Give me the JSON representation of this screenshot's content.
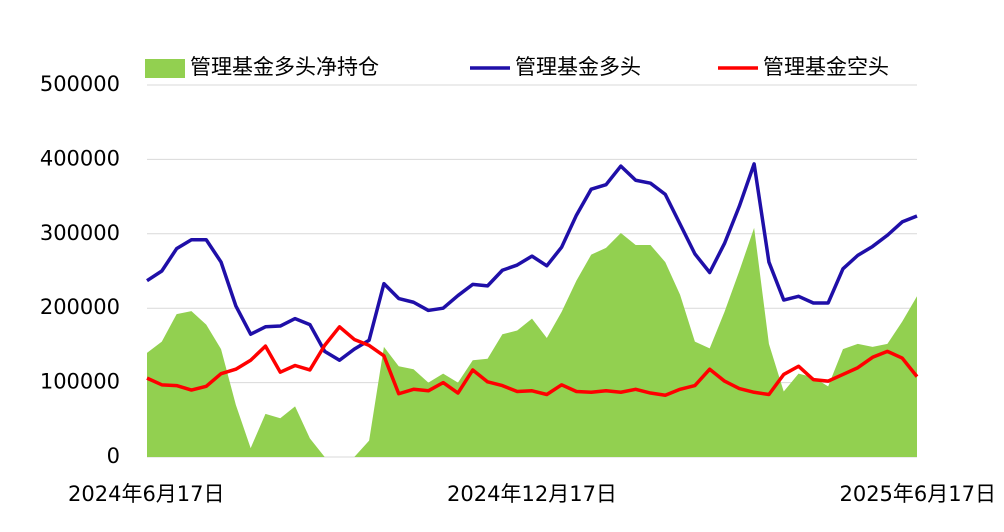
{
  "chart_data": {
    "type": "area-line",
    "categories": [
      "2024年6月17日",
      null,
      null,
      null,
      null,
      null,
      null,
      null,
      null,
      null,
      null,
      null,
      null,
      null,
      null,
      null,
      null,
      null,
      null,
      null,
      null,
      null,
      null,
      null,
      null,
      null,
      "2024年12月17日",
      null,
      null,
      null,
      null,
      null,
      null,
      null,
      null,
      null,
      null,
      null,
      null,
      null,
      null,
      null,
      null,
      null,
      null,
      null,
      null,
      null,
      null,
      null,
      null,
      null,
      "2025年6月17日"
    ],
    "series": [
      {
        "name": "管理基金多头净持仓",
        "color": "#92d050",
        "kind": "area",
        "values": [
          140000,
          155000,
          192000,
          196000,
          178000,
          145000,
          70000,
          12000,
          58000,
          52000,
          68000,
          25000,
          0,
          0,
          0,
          22000,
          148000,
          122000,
          118000,
          100000,
          112000,
          100000,
          130000,
          132000,
          165000,
          170000,
          186000,
          160000,
          195000,
          237000,
          272000,
          281000,
          301000,
          285000,
          285000,
          262000,
          218000,
          155000,
          146000,
          195000,
          250000,
          308000,
          152000,
          88000,
          112000,
          107000,
          95000,
          145000,
          152000,
          148000,
          152000,
          182000,
          216000
        ]
      },
      {
        "name": "管理基金多头",
        "color": "#1f0fa8",
        "kind": "line",
        "values": [
          237000,
          250000,
          280000,
          292000,
          292000,
          262000,
          203000,
          165000,
          175000,
          176000,
          186000,
          178000,
          142000,
          130000,
          145000,
          157000,
          233000,
          213000,
          208000,
          197000,
          200000,
          217000,
          232000,
          230000,
          251000,
          258000,
          270000,
          257000,
          282000,
          325000,
          360000,
          366000,
          391000,
          372000,
          368000,
          353000,
          313000,
          273000,
          248000,
          287000,
          337000,
          394000,
          262000,
          211000,
          216000,
          207000,
          207000,
          253000,
          271000,
          283000,
          298000,
          316000,
          324000
        ]
      },
      {
        "name": "管理基金空头",
        "color": "#ff0000",
        "kind": "line",
        "values": [
          106000,
          97000,
          96000,
          90000,
          95000,
          112000,
          118000,
          130000,
          149000,
          114000,
          123000,
          117000,
          150000,
          175000,
          158000,
          150000,
          136000,
          85000,
          91000,
          89000,
          100000,
          86000,
          117000,
          101000,
          96000,
          88000,
          89000,
          84000,
          97000,
          88000,
          87000,
          89000,
          87000,
          91000,
          86000,
          83000,
          91000,
          96000,
          118000,
          102000,
          92000,
          87000,
          84000,
          111000,
          122000,
          104000,
          102000,
          111000,
          120000,
          134000,
          142000,
          133000,
          108000
        ]
      }
    ],
    "ylim": [
      0,
      500000
    ],
    "yticks": [
      0,
      100000,
      200000,
      300000,
      400000,
      500000
    ],
    "grid": true
  }
}
